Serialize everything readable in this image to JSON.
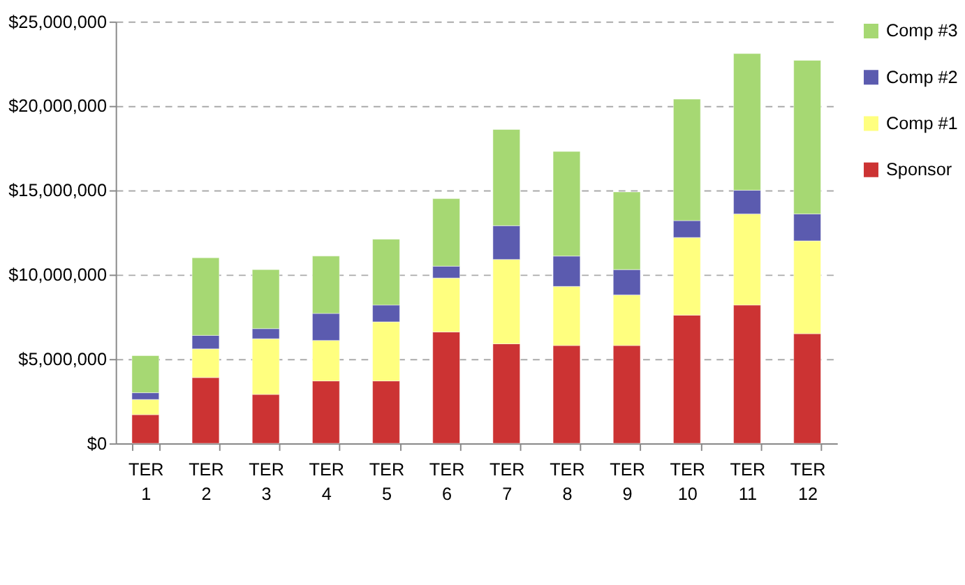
{
  "chart_data": {
    "type": "bar",
    "stacked": true,
    "categories": [
      "TER 1",
      "TER 2",
      "TER 3",
      "TER 4",
      "TER 5",
      "TER 6",
      "TER 7",
      "TER 8",
      "TER 9",
      "TER 10",
      "TER 11",
      "TER 12"
    ],
    "series": [
      {
        "name": "Sponsor",
        "color": "#cc3333",
        "values": [
          1700000,
          3900000,
          2900000,
          3700000,
          3700000,
          6600000,
          5900000,
          5800000,
          5800000,
          7600000,
          8200000,
          6500000
        ]
      },
      {
        "name": "Comp #1",
        "color": "#ffff7f",
        "values": [
          900000,
          1700000,
          3300000,
          2400000,
          3500000,
          3200000,
          5000000,
          3500000,
          3000000,
          4600000,
          5400000,
          5500000
        ]
      },
      {
        "name": "Comp #2",
        "color": "#5b5baf",
        "values": [
          400000,
          800000,
          600000,
          1600000,
          1000000,
          700000,
          2000000,
          1800000,
          1500000,
          1000000,
          1400000,
          1600000
        ]
      },
      {
        "name": "Comp #3",
        "color": "#a6d873",
        "values": [
          2200000,
          4600000,
          3500000,
          3400000,
          3900000,
          4000000,
          5700000,
          6200000,
          4600000,
          7200000,
          8100000,
          9100000
        ]
      }
    ],
    "ylim": [
      0,
      25000000
    ],
    "yticks": [
      {
        "value": 0,
        "label": "$0"
      },
      {
        "value": 5000000,
        "label": "$5,000,000"
      },
      {
        "value": 10000000,
        "label": "$10,000,000"
      },
      {
        "value": 15000000,
        "label": "$15,000,000"
      },
      {
        "value": 20000000,
        "label": "$20,000,000"
      },
      {
        "value": 25000000,
        "label": "$25,000,000"
      }
    ],
    "grid": "y",
    "legend": "right"
  }
}
